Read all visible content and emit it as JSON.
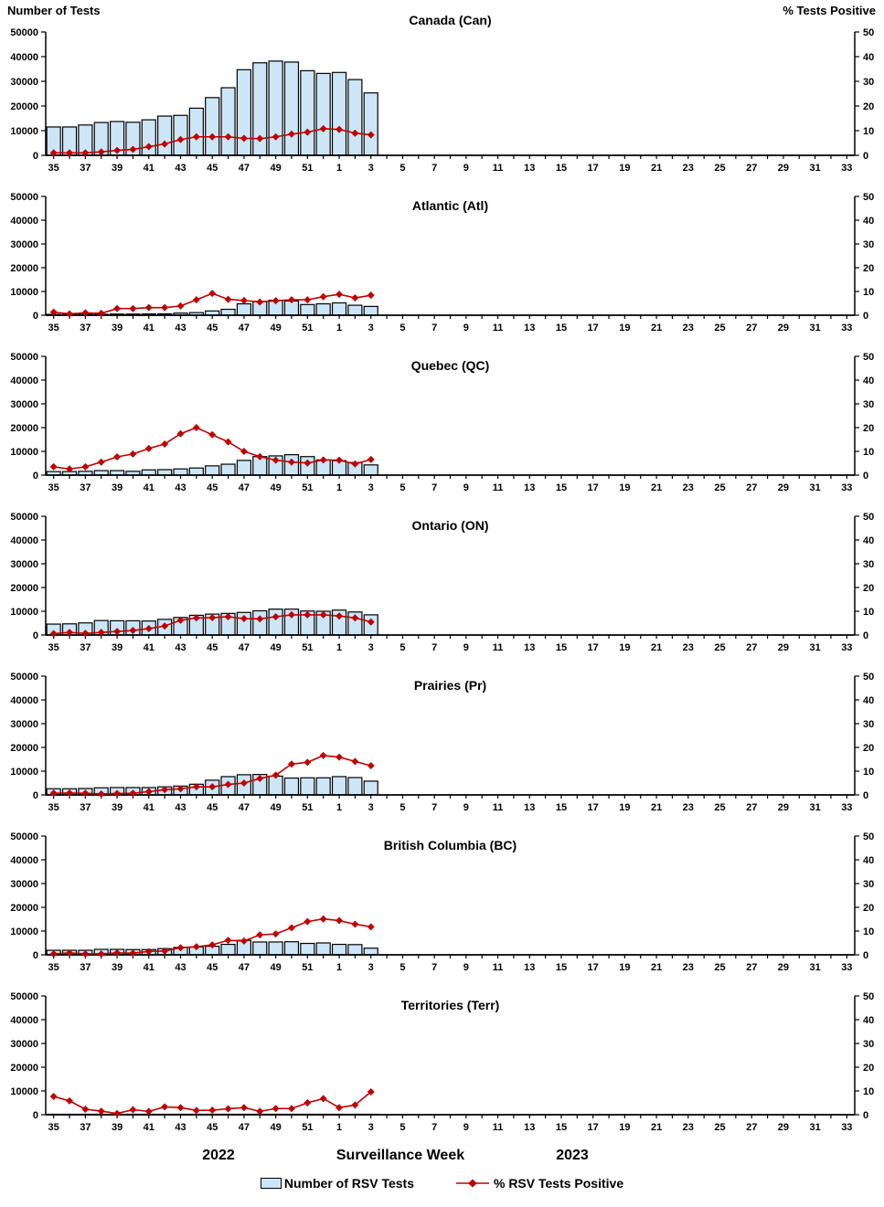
{
  "page": {
    "left_axis_title": "Number of Tests",
    "right_axis_title": "% Tests Positive",
    "x_axis": {
      "year_left": "2022",
      "title": "Surveillance Week",
      "year_right": "2023"
    },
    "legend": [
      {
        "label": "Number of RSV Tests",
        "type": "bar"
      },
      {
        "label": "% RSV Tests Positive",
        "type": "line"
      }
    ],
    "colors": {
      "bar_fill": "#CDE6F7",
      "bar_border": "#000000",
      "line": "#C00000",
      "text": "#000000"
    },
    "axes": {
      "left_ticks": [
        0,
        10000,
        20000,
        30000,
        40000,
        50000
      ],
      "right_ticks": [
        0,
        10,
        20,
        30,
        40,
        50
      ],
      "weeks_2022": [
        35,
        52
      ],
      "weeks_2023": [
        1,
        33
      ],
      "x_tick_labels_shown": [
        "35",
        "37",
        "39",
        "41",
        "43",
        "45",
        "47",
        "49",
        "51",
        "1",
        "3",
        "5",
        "7",
        "9",
        "11",
        "13",
        "15",
        "17",
        "19",
        "21",
        "23",
        "25",
        "27",
        "29",
        "31",
        "33"
      ]
    }
  },
  "chart_data": [
    {
      "type": "bar+line",
      "id": "canada",
      "title": "Canada (Can)",
      "ylim_left": [
        0,
        50000
      ],
      "ylim_right": [
        0,
        50
      ],
      "data_weeks": [
        "35",
        "36",
        "37",
        "38",
        "39",
        "40",
        "41",
        "42",
        "43",
        "44",
        "45",
        "46",
        "47",
        "48",
        "49",
        "50",
        "51",
        "52",
        "1",
        "2",
        "3"
      ],
      "tests": [
        11500,
        11500,
        12300,
        13300,
        13700,
        13400,
        14400,
        15900,
        16200,
        19100,
        23400,
        27400,
        34700,
        37500,
        38200,
        37800,
        34300,
        33200,
        33600,
        30700,
        25300
      ],
      "pct_positive": [
        1.0,
        1.0,
        1.0,
        1.4,
        2.0,
        2.4,
        3.5,
        4.6,
        6.4,
        7.5,
        7.5,
        7.5,
        6.9,
        6.8,
        7.5,
        8.6,
        9.4,
        10.8,
        10.5,
        9.0,
        8.3
      ]
    },
    {
      "type": "bar+line",
      "id": "atlantic",
      "title": "Atlantic (Atl)",
      "ylim_left": [
        0,
        50000
      ],
      "ylim_right": [
        0,
        50
      ],
      "data_weeks": [
        "35",
        "36",
        "37",
        "38",
        "39",
        "40",
        "41",
        "42",
        "43",
        "44",
        "45",
        "46",
        "47",
        "48",
        "49",
        "50",
        "51",
        "52",
        "1",
        "2",
        "3"
      ],
      "tests": [
        350,
        350,
        350,
        400,
        500,
        500,
        550,
        600,
        900,
        1100,
        1800,
        2500,
        4800,
        5800,
        6300,
        6000,
        4500,
        4800,
        5200,
        4200,
        3700
      ],
      "pct_positive": [
        1.3,
        0.6,
        1.0,
        0.8,
        2.8,
        2.8,
        3.2,
        3.2,
        3.9,
        6.5,
        9.2,
        6.7,
        6.2,
        5.6,
        6.1,
        6.5,
        6.5,
        7.8,
        8.8,
        7.3,
        8.4
      ]
    },
    {
      "type": "bar+line",
      "id": "quebec",
      "title": "Quebec (QC)",
      "ylim_left": [
        0,
        50000
      ],
      "ylim_right": [
        0,
        50
      ],
      "data_weeks": [
        "35",
        "36",
        "37",
        "38",
        "39",
        "40",
        "41",
        "42",
        "43",
        "44",
        "45",
        "46",
        "47",
        "48",
        "49",
        "50",
        "51",
        "52",
        "1",
        "2",
        "3"
      ],
      "tests": [
        1500,
        1500,
        1600,
        1900,
        1900,
        1600,
        2200,
        2300,
        2600,
        3000,
        3900,
        4600,
        6200,
        7800,
        8100,
        8600,
        7800,
        6400,
        6100,
        5300,
        4300
      ],
      "pct_positive": [
        3.5,
        2.6,
        3.5,
        5.5,
        7.7,
        8.9,
        11.2,
        13.1,
        17.4,
        20.0,
        17.0,
        14.0,
        10.0,
        7.8,
        6.3,
        5.5,
        5.1,
        6.4,
        6.3,
        4.7,
        6.6
      ]
    },
    {
      "type": "bar+line",
      "id": "ontario",
      "title": "Ontario (ON)",
      "ylim_left": [
        0,
        50000
      ],
      "ylim_right": [
        0,
        50
      ],
      "data_weeks": [
        "35",
        "36",
        "37",
        "38",
        "39",
        "40",
        "41",
        "42",
        "43",
        "44",
        "45",
        "46",
        "47",
        "48",
        "49",
        "50",
        "51",
        "52",
        "1",
        "2",
        "3"
      ],
      "tests": [
        4600,
        4700,
        5100,
        6100,
        6000,
        6000,
        5900,
        6600,
        7400,
        8300,
        8800,
        9100,
        9500,
        10200,
        10900,
        10900,
        10100,
        10000,
        10500,
        9700,
        8500
      ],
      "pct_positive": [
        0.6,
        1.1,
        0.7,
        1.1,
        1.5,
        1.9,
        2.7,
        3.8,
        6.2,
        7.2,
        7.3,
        7.7,
        6.9,
        6.8,
        7.7,
        8.5,
        8.5,
        8.5,
        8.0,
        7.2,
        5.5
      ]
    },
    {
      "type": "bar+line",
      "id": "prairies",
      "title": "Prairies (Pr)",
      "ylim_left": [
        0,
        50000
      ],
      "ylim_right": [
        0,
        50
      ],
      "data_weeks": [
        "35",
        "36",
        "37",
        "38",
        "39",
        "40",
        "41",
        "42",
        "43",
        "44",
        "45",
        "46",
        "47",
        "48",
        "49",
        "50",
        "51",
        "52",
        "1",
        "2",
        "3"
      ],
      "tests": [
        2600,
        2600,
        2700,
        3000,
        3100,
        3100,
        3100,
        3400,
        3700,
        4500,
        6200,
        7700,
        8500,
        8600,
        7900,
        7100,
        7200,
        7200,
        7700,
        7300,
        5800
      ],
      "pct_positive": [
        0.7,
        0.8,
        0.7,
        0.4,
        0.6,
        0.7,
        1.4,
        2.2,
        2.6,
        3.4,
        3.4,
        4.4,
        5.0,
        6.9,
        8.3,
        13.0,
        13.7,
        16.6,
        15.9,
        14.1,
        12.3
      ]
    },
    {
      "type": "bar+line",
      "id": "british-columbia",
      "title": "British Columbia (BC)",
      "ylim_left": [
        0,
        50000
      ],
      "ylim_right": [
        0,
        50
      ],
      "data_weeks": [
        "35",
        "36",
        "37",
        "38",
        "39",
        "40",
        "41",
        "42",
        "43",
        "44",
        "45",
        "46",
        "47",
        "48",
        "49",
        "50",
        "51",
        "52",
        "1",
        "2",
        "3"
      ],
      "tests": [
        1900,
        1900,
        1900,
        2300,
        2300,
        2200,
        2200,
        2600,
        3100,
        3300,
        3600,
        4400,
        6100,
        5400,
        5400,
        5500,
        4800,
        5000,
        4400,
        4300,
        2800
      ],
      "pct_positive": [
        0.4,
        0.8,
        0.4,
        0.4,
        0.8,
        0.7,
        1.4,
        1.6,
        3.0,
        3.4,
        4.2,
        6.1,
        5.8,
        8.4,
        8.8,
        11.4,
        14.0,
        15.1,
        14.4,
        12.9,
        11.8
      ]
    },
    {
      "type": "bar+line",
      "id": "territories",
      "title": "Territories (Terr)",
      "ylim_left": [
        0,
        50000
      ],
      "ylim_right": [
        0,
        50
      ],
      "data_weeks": [
        "35",
        "36",
        "37",
        "38",
        "39",
        "40",
        "41",
        "42",
        "43",
        "44",
        "45",
        "46",
        "47",
        "48",
        "49",
        "50",
        "51",
        "52",
        "1",
        "2",
        "3"
      ],
      "tests": [
        200,
        200,
        200,
        200,
        200,
        200,
        200,
        200,
        200,
        200,
        200,
        200,
        200,
        200,
        200,
        200,
        200,
        200,
        200,
        200,
        200
      ],
      "pct_positive": [
        7.7,
        5.8,
        2.3,
        1.5,
        0.5,
        2.1,
        1.4,
        3.3,
        3.0,
        1.8,
        1.9,
        2.5,
        3.0,
        1.4,
        2.6,
        2.6,
        5.0,
        6.8,
        3.0,
        4.1,
        9.6
      ]
    }
  ]
}
